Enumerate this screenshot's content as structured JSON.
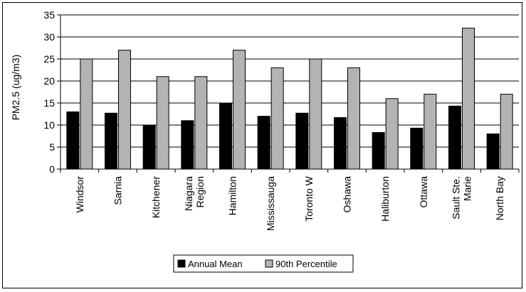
{
  "chart_data": {
    "type": "bar",
    "title": "",
    "xlabel": "",
    "ylabel": "PM2.5 (ug/m3)",
    "ylim": [
      0,
      35
    ],
    "yticks": [
      0,
      5,
      10,
      15,
      20,
      25,
      30,
      35
    ],
    "grid": true,
    "legend_position": "bottom",
    "categories": [
      [
        "Windsor"
      ],
      [
        "Sarnia"
      ],
      [
        "Kitchener"
      ],
      [
        "Niagara",
        "Region"
      ],
      [
        "Hamilton"
      ],
      [
        "Mississauga"
      ],
      [
        "Toronto W"
      ],
      [
        "Oshawa"
      ],
      [
        "Haliburton"
      ],
      [
        "Ottawa"
      ],
      [
        "Sault Ste.",
        "Marie"
      ],
      [
        "North Bay"
      ]
    ],
    "series": [
      {
        "name": "Annual Mean",
        "color": "#000000",
        "values": [
          13,
          12.7,
          10,
          11,
          15,
          12,
          12.7,
          11.7,
          8.3,
          9.3,
          14.3,
          8
        ]
      },
      {
        "name": "90th Percentile",
        "color": "#b3b3b3",
        "values": [
          25,
          27,
          21,
          21,
          27,
          23,
          25,
          23,
          16,
          17,
          32,
          17
        ]
      }
    ]
  }
}
